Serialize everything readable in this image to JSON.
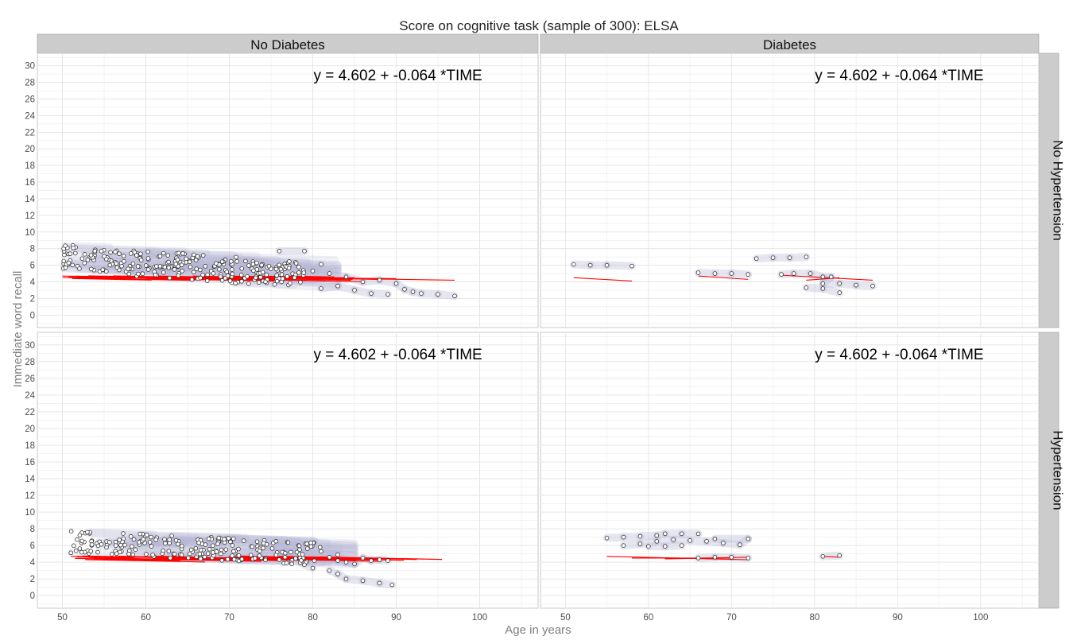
{
  "title": "Score on cognitive task (sample of 300): ELSA",
  "xlabel": "Age in years",
  "ylabel": "Immediate word recall",
  "col_strips": [
    "No Diabetes",
    "Diabetes"
  ],
  "row_strips": [
    "No Hypertension",
    "Hypertension"
  ],
  "equation": "y =  4.602  +  -0.064 *TIME",
  "colors": {
    "panel_bg": "#ffffff",
    "grid": "#e6e6e6",
    "strip_bg": "#cccccc",
    "points_stroke": "#333333",
    "trajectory_band": "#b8b8d4",
    "fit_line": "#ff0000"
  },
  "chart_data": {
    "type": "scatter",
    "facets": "2x2 (rows: hypertension, cols: diabetes)",
    "xlim": [
      47,
      107
    ],
    "ylim": [
      -1.5,
      31.5
    ],
    "x_ticks": [
      50,
      60,
      70,
      80,
      90,
      100
    ],
    "y_ticks": [
      0,
      2,
      4,
      6,
      8,
      10,
      12,
      14,
      16,
      18,
      20,
      22,
      24,
      26,
      28,
      30
    ],
    "grid": true,
    "panels": [
      {
        "row": "No Hypertension",
        "col": "No Diabetes",
        "equation": "y =  4.602  +  -0.064 *TIME",
        "cloud": {
          "x": [
            50,
            79
          ],
          "y_center_start": 6.9,
          "y_center_end": 4.8,
          "spread": 1.6,
          "count": 260
        },
        "points": [
          [
            76,
            7.7
          ],
          [
            79,
            7.7
          ],
          [
            81,
            6.1
          ],
          [
            80,
            5.3
          ],
          [
            82,
            5.0
          ],
          [
            84,
            4.6
          ],
          [
            86,
            4.0
          ],
          [
            88,
            4.2
          ],
          [
            90,
            3.8
          ],
          [
            91,
            3.1
          ],
          [
            92,
            2.8
          ],
          [
            93,
            2.6
          ],
          [
            95,
            2.5
          ],
          [
            97,
            2.3
          ],
          [
            89,
            2.5
          ],
          [
            87,
            2.6
          ],
          [
            85,
            3.0
          ],
          [
            83,
            3.5
          ],
          [
            81,
            3.2
          ]
        ],
        "fit_lines": [
          [
            50,
            4.7,
            75,
            4.3
          ],
          [
            70,
            4.6,
            97,
            4.2
          ],
          [
            55,
            4.5,
            85,
            4.5
          ],
          [
            60,
            4.4,
            90,
            4.4
          ]
        ]
      },
      {
        "row": "No Hypertension",
        "col": "Diabetes",
        "equation": "y =  4.602  +  -0.064 *TIME",
        "cloud": null,
        "points": [
          [
            51,
            6.1
          ],
          [
            53,
            6.0
          ],
          [
            55,
            6.0
          ],
          [
            58,
            5.9
          ],
          [
            66,
            5.1
          ],
          [
            68,
            5.0
          ],
          [
            70,
            5.0
          ],
          [
            72,
            4.9
          ],
          [
            73,
            6.8
          ],
          [
            75,
            6.9
          ],
          [
            77,
            6.9
          ],
          [
            79,
            7.0
          ],
          [
            76,
            4.9
          ],
          [
            77.5,
            5.0
          ],
          [
            79.5,
            5.0
          ],
          [
            81,
            4.6
          ],
          [
            82,
            4.6
          ],
          [
            81,
            3.8
          ],
          [
            83,
            3.8
          ],
          [
            85,
            3.6
          ],
          [
            87,
            3.5
          ],
          [
            79,
            3.3
          ],
          [
            81,
            3.2
          ],
          [
            83,
            2.7
          ]
        ],
        "fit_lines": [
          [
            51,
            4.5,
            58,
            4.1
          ],
          [
            66,
            4.7,
            72,
            4.3
          ],
          [
            76,
            4.8,
            87,
            4.2
          ],
          [
            79,
            4.2,
            83,
            4.5
          ]
        ]
      },
      {
        "row": "Hypertension",
        "col": "No Diabetes",
        "equation": "y =  4.602  +  -0.064 *TIME",
        "cloud": {
          "x": [
            51,
            81
          ],
          "y_center_start": 6.5,
          "y_center_end": 5.0,
          "spread": 1.4,
          "count": 220
        },
        "points": [
          [
            82,
            4.6
          ],
          [
            83,
            4.2
          ],
          [
            84,
            4.0
          ],
          [
            85,
            3.8
          ],
          [
            86,
            4.5
          ],
          [
            87,
            4.2
          ],
          [
            88,
            4.3
          ],
          [
            89,
            4.2
          ],
          [
            82,
            3.0
          ],
          [
            83,
            2.6
          ],
          [
            84,
            2.0
          ],
          [
            86,
            1.8
          ],
          [
            88,
            1.5
          ],
          [
            89.5,
            1.3
          ],
          [
            80,
            3.3
          ],
          [
            79,
            3.7
          ],
          [
            81,
            5.3
          ],
          [
            83,
            4.9
          ]
        ],
        "fit_lines": [
          [
            51,
            4.7,
            89,
            4.3
          ],
          [
            55,
            4.6,
            85,
            4.5
          ],
          [
            60,
            4.4,
            88,
            4.4
          ],
          [
            65,
            4.5,
            80,
            4.3
          ]
        ]
      },
      {
        "row": "Hypertension",
        "col": "Diabetes",
        "equation": "y =  4.602  +  -0.064 *TIME",
        "cloud": null,
        "points": [
          [
            55,
            6.9
          ],
          [
            57,
            7.0
          ],
          [
            59,
            7.1
          ],
          [
            61,
            7.2
          ],
          [
            62,
            7.4
          ],
          [
            64,
            7.4
          ],
          [
            66,
            7.4
          ],
          [
            57,
            6.0
          ],
          [
            59,
            6.2
          ],
          [
            61,
            6.5
          ],
          [
            63,
            6.7
          ],
          [
            65,
            6.6
          ],
          [
            67,
            6.5
          ],
          [
            69,
            6.3
          ],
          [
            71,
            6.1
          ],
          [
            72,
            6.8
          ],
          [
            68,
            6.8
          ],
          [
            60,
            5.9
          ],
          [
            62,
            5.9
          ],
          [
            64,
            6.0
          ],
          [
            66,
            4.5
          ],
          [
            68,
            4.6
          ],
          [
            70,
            4.6
          ],
          [
            72,
            4.5
          ],
          [
            81,
            4.7
          ],
          [
            83,
            4.8
          ]
        ],
        "fit_lines": [
          [
            55,
            4.7,
            72,
            4.3
          ],
          [
            58,
            4.5,
            70,
            4.5
          ],
          [
            62,
            4.4,
            72,
            4.6
          ],
          [
            81,
            4.7,
            83,
            4.6
          ]
        ]
      }
    ]
  }
}
